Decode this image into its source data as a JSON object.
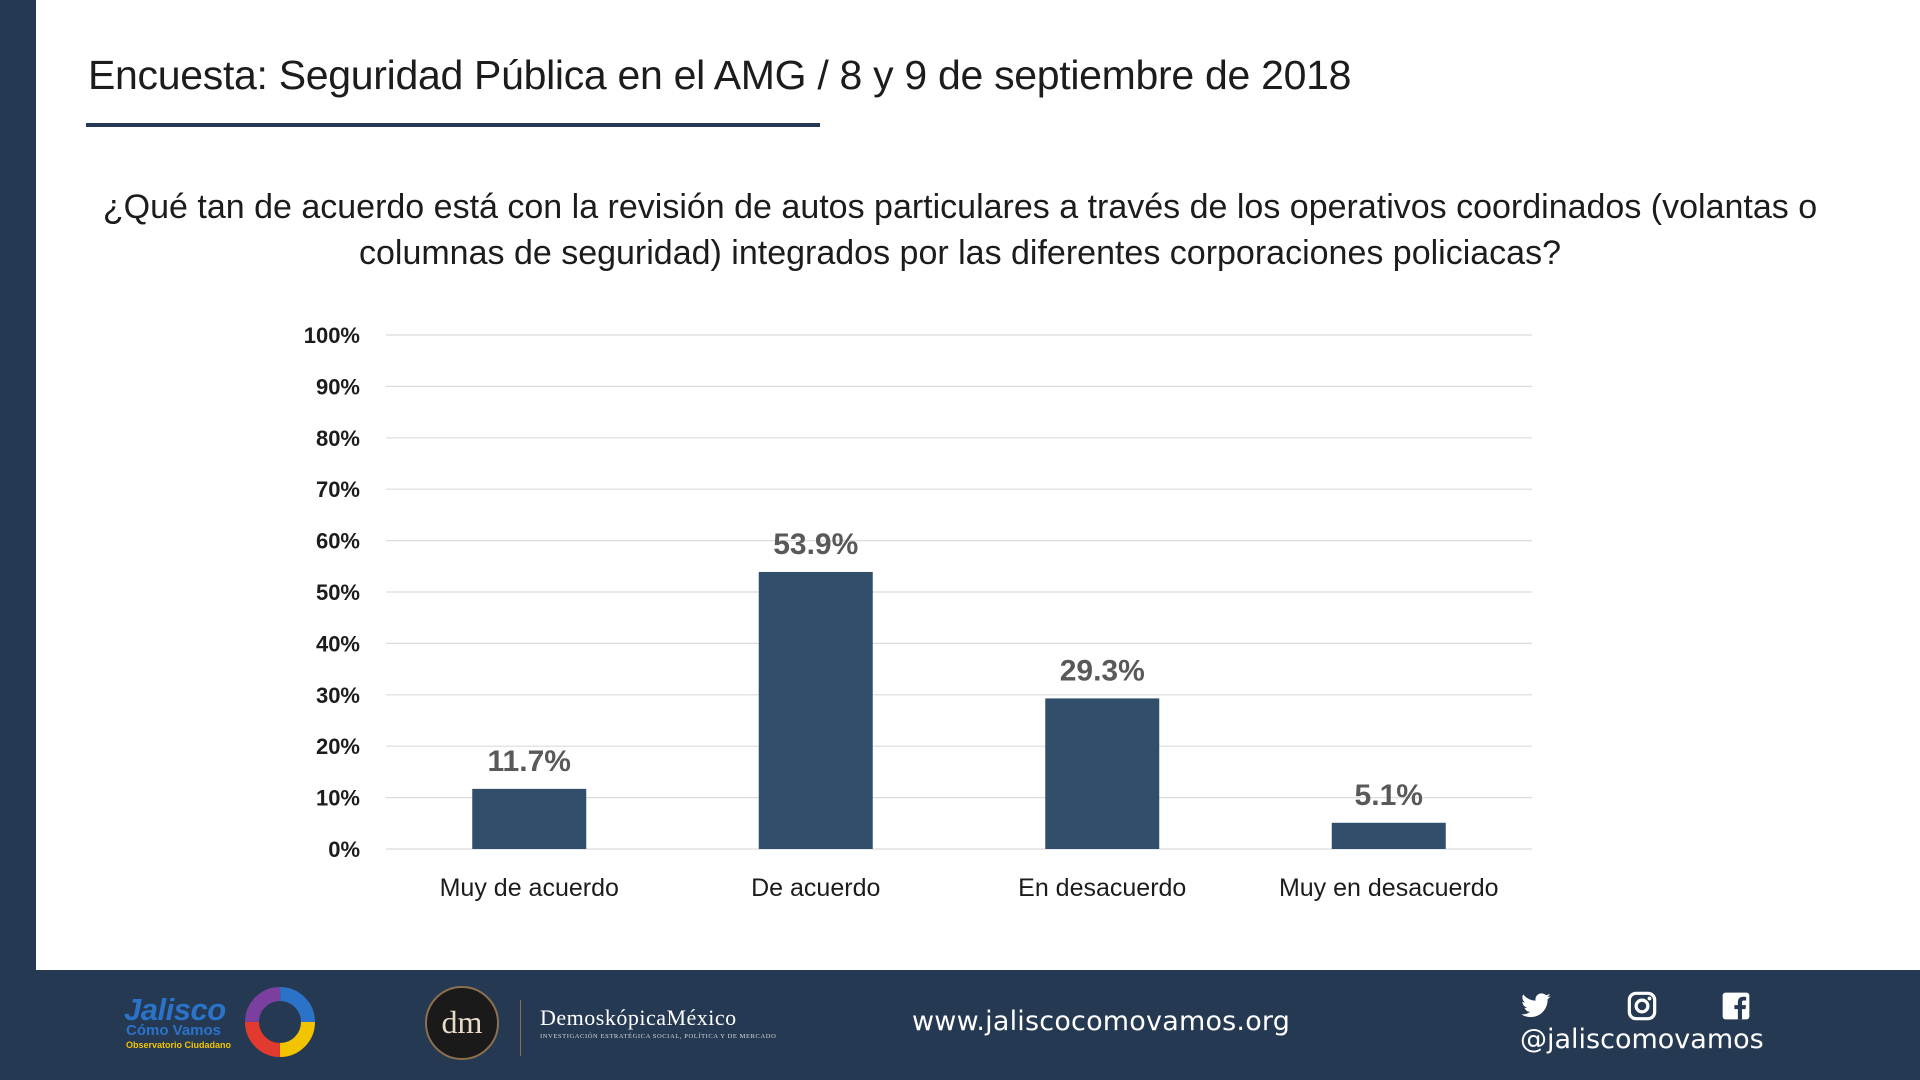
{
  "header": {
    "title": "Encuesta: Seguridad Pública en el AMG / 8 y 9 de septiembre de 2018"
  },
  "question": "¿Qué tan de acuerdo está con la revisión de autos particulares a través de los operativos coordinados (volantas o columnas de seguridad) integrados por las diferentes corporaciones policiacas?",
  "colors": {
    "bar": "#314f6b",
    "frame": "#253a52",
    "gridline": "#dcdcdc",
    "value_label": "#595959",
    "axis_text": "#1c1c1c"
  },
  "chart_data": {
    "type": "bar",
    "categories": [
      "Muy de acuerdo",
      "De acuerdo",
      "En desacuerdo",
      "Muy en desacuerdo"
    ],
    "values": [
      11.7,
      53.9,
      29.3,
      5.1
    ],
    "value_labels": [
      "11.7%",
      "53.9%",
      "29.3%",
      "5.1%"
    ],
    "ylim": [
      0,
      100
    ],
    "yticks": [
      "0%",
      "10%",
      "20%",
      "30%",
      "40%",
      "50%",
      "60%",
      "70%",
      "80%",
      "90%",
      "100%"
    ],
    "grid": true,
    "legend": "none"
  },
  "footer": {
    "logo1": {
      "line1": "Jalisco",
      "line2": "Cómo Vamos",
      "line3": "Observatorio Ciudadano"
    },
    "logo2": {
      "monogram": "dm",
      "name": "DemoskópicaMéxico",
      "tagline": "INVESTIGACIÓN ESTRATÉGICA SOCIAL, POLÍTICA Y DE MERCADO"
    },
    "website": "www.jaliscocomovamos.org",
    "social_icons": [
      "twitter-icon",
      "instagram-icon",
      "facebook-icon"
    ],
    "handle": "@jaliscomovamos"
  }
}
